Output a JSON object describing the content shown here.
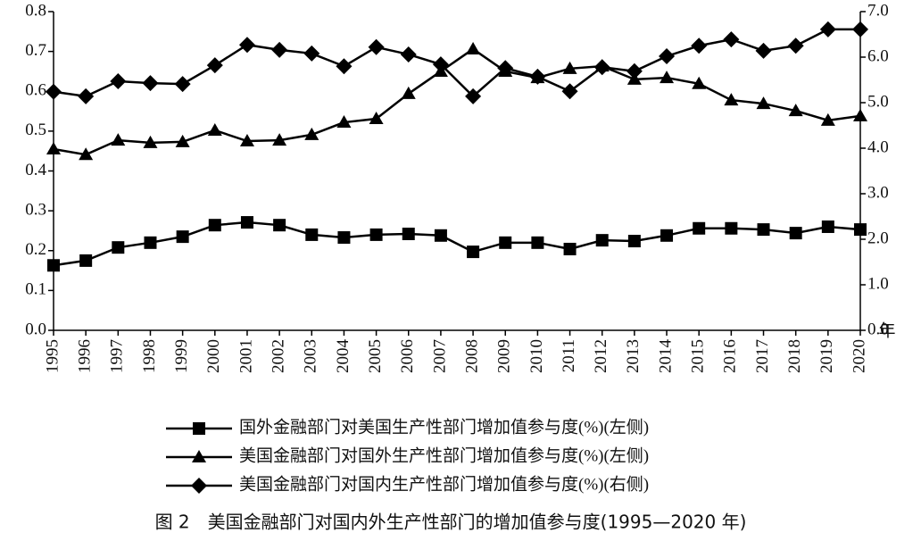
{
  "chart_data": {
    "type": "line",
    "title": "图 2　美国金融部门对国内外生产性部门的增加值参与度(1995—2020 年)",
    "x_label": "年",
    "categories": [
      "1995",
      "1996",
      "1997",
      "1998",
      "1999",
      "2000",
      "2001",
      "2002",
      "2003",
      "2004",
      "2005",
      "2006",
      "2007",
      "2008",
      "2009",
      "2010",
      "2011",
      "2012",
      "2013",
      "2014",
      "2015",
      "2016",
      "2017",
      "2018",
      "2019",
      "2020"
    ],
    "series": [
      {
        "name": "国外金融部门对美国生产性部门增加值参与度(%)(左侧)",
        "color": "#000000",
        "marker": "square",
        "axis": "y",
        "values": [
          0.163,
          0.175,
          0.208,
          0.22,
          0.235,
          0.264,
          0.271,
          0.264,
          0.24,
          0.233,
          0.24,
          0.242,
          0.238,
          0.197,
          0.22,
          0.22,
          0.204,
          0.226,
          0.224,
          0.238,
          0.256,
          0.256,
          0.253,
          0.244,
          0.26,
          0.253
        ]
      },
      {
        "name": "美国金融部门对国外生产性部门增加值参与度(%)(左侧)",
        "color": "#000000",
        "marker": "triangle",
        "axis": "y",
        "values": [
          0.455,
          0.441,
          0.477,
          0.471,
          0.473,
          0.502,
          0.475,
          0.477,
          0.491,
          0.522,
          0.531,
          0.594,
          0.65,
          0.706,
          0.65,
          0.634,
          0.657,
          0.663,
          0.63,
          0.634,
          0.619,
          0.578,
          0.569,
          0.551,
          0.527,
          0.538
        ]
      },
      {
        "name": "美国金融部门对国内生产性部门增加值参与度(%)(右侧)",
        "color": "#000000",
        "marker": "diamond",
        "axis": "y2",
        "values": [
          5.24,
          5.14,
          5.47,
          5.43,
          5.41,
          5.82,
          6.27,
          6.16,
          6.08,
          5.8,
          6.22,
          6.06,
          5.84,
          5.14,
          5.76,
          5.57,
          5.25,
          5.78,
          5.69,
          6.02,
          6.25,
          6.39,
          6.14,
          6.25,
          6.61,
          6.61
        ]
      }
    ],
    "ylim": [
      0,
      0.8
    ],
    "yticks": [
      {
        "value": 0,
        "label": "0.0"
      },
      0.1,
      0.2,
      0.3,
      0.4,
      0.5,
      0.6,
      0.7,
      0.8
    ],
    "y2lim": [
      0,
      7
    ],
    "y2ticks": [
      {
        "value": 0,
        "label": "0.0"
      },
      {
        "value": 1,
        "label": "1.0"
      },
      {
        "value": 2,
        "label": "2.0"
      },
      {
        "value": 3,
        "label": "3.0"
      },
      {
        "value": 4,
        "label": "4.0"
      },
      {
        "value": 5,
        "label": "5.0"
      },
      {
        "value": 6,
        "label": "6.0"
      },
      {
        "value": 7,
        "label": "7.0"
      }
    ],
    "grid": false
  }
}
